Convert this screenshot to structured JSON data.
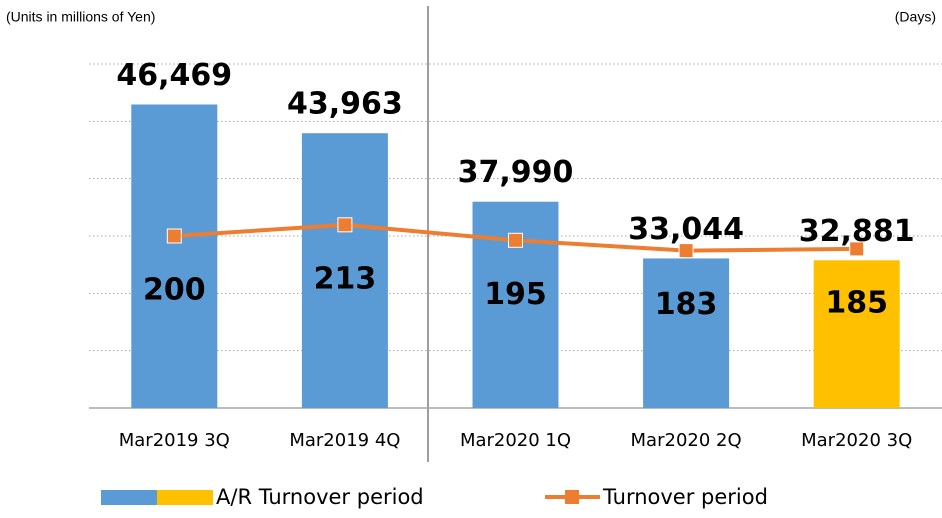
{
  "chart_data": {
    "type": "combo",
    "left_unit": "(Units in millions of Yen)",
    "right_unit": "(Days)",
    "categories": [
      "Mar2019 3Q",
      "Mar2019 4Q",
      "Mar2020 1Q",
      "Mar2020 2Q",
      "Mar2020 3Q"
    ],
    "series": [
      {
        "name": "A/R Turnover period",
        "type": "bar",
        "colors": [
          "#5b9bd5",
          "#5b9bd5",
          "#5b9bd5",
          "#5b9bd5",
          "#ffc000"
        ],
        "values": [
          46469,
          43963,
          37990,
          33044,
          32881
        ],
        "value_labels": [
          "46,469",
          "43,963",
          "37,990",
          "33,044",
          "32,881"
        ]
      },
      {
        "name": "Turnover period",
        "type": "line",
        "color": "#ed7d31",
        "axis": "y2",
        "values": [
          200,
          213,
          195,
          183,
          185
        ]
      }
    ],
    "ylim": [
      20000,
      50000
    ],
    "yticks": [
      25000,
      30000,
      35000,
      40000,
      45000,
      50000
    ],
    "y2lim": [
      0,
      400
    ],
    "grid": true
  }
}
